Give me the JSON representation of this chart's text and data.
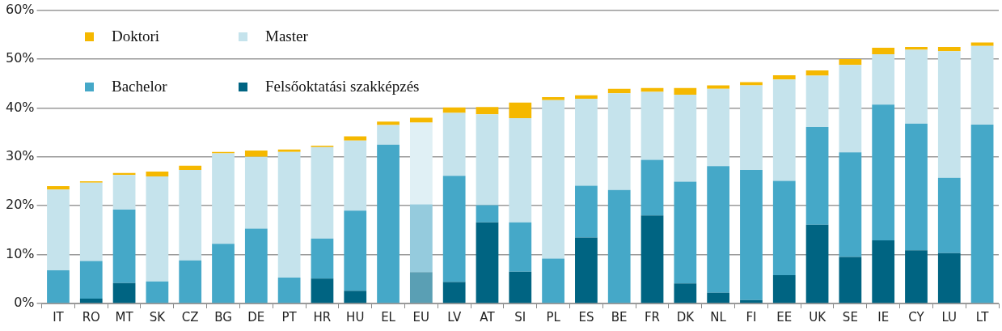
{
  "chart_data": {
    "type": "bar",
    "stacked": true,
    "categories": [
      "IT",
      "RO",
      "MT",
      "SK",
      "CZ",
      "BG",
      "DE",
      "PT",
      "HR",
      "HU",
      "EL",
      "EU",
      "LV",
      "AT",
      "SI",
      "PL",
      "ES",
      "BE",
      "FR",
      "DK",
      "NL",
      "FI",
      "EE",
      "UK",
      "SE",
      "IE",
      "CY",
      "LU",
      "LT"
    ],
    "series": [
      {
        "name": "Felsőoktatási szakképzés",
        "colors": [
          "#006482",
          "#006482",
          "#006482",
          "#006482",
          "#006482",
          "#006482",
          "#006482",
          "#006482",
          "#006482",
          "#006482",
          "#006482",
          "#5a9fb4",
          "#006482",
          "#006482",
          "#006482",
          "#006482",
          "#006482",
          "#006482",
          "#006482",
          "#006482",
          "#006482",
          "#006482",
          "#006482",
          "#006482",
          "#006482",
          "#006482",
          "#006482",
          "#006482",
          "#006482"
        ],
        "values": [
          0,
          1.0,
          4.2,
          0,
          0,
          0,
          0,
          0,
          5.1,
          2.6,
          0,
          6.4,
          4.4,
          16.6,
          6.5,
          0,
          13.5,
          0,
          18.0,
          4.1,
          2.2,
          0.7,
          5.8,
          16.1,
          9.5,
          12.9,
          10.9,
          10.3,
          0
        ]
      },
      {
        "name": "Bachelor",
        "colors": [
          "#45a8c8",
          "#45a8c8",
          "#45a8c8",
          "#45a8c8",
          "#45a8c8",
          "#45a8c8",
          "#45a8c8",
          "#45a8c8",
          "#45a8c8",
          "#45a8c8",
          "#45a8c8",
          "#95cbdd",
          "#45a8c8",
          "#45a8c8",
          "#45a8c8",
          "#45a8c8",
          "#45a8c8",
          "#45a8c8",
          "#45a8c8",
          "#45a8c8",
          "#45a8c8",
          "#45a8c8",
          "#45a8c8",
          "#45a8c8",
          "#45a8c8",
          "#45a8c8",
          "#45a8c8",
          "#45a8c8",
          "#45a8c8"
        ],
        "values": [
          6.8,
          7.7,
          15.0,
          4.5,
          8.8,
          12.2,
          15.3,
          5.3,
          8.2,
          16.4,
          32.5,
          13.9,
          21.7,
          3.5,
          10.1,
          9.2,
          10.6,
          23.2,
          11.4,
          20.8,
          25.9,
          26.6,
          19.3,
          20.0,
          21.4,
          27.8,
          25.9,
          15.4,
          36.6
        ]
      },
      {
        "name": "Master",
        "colors": [
          "#c5e3ec",
          "#c5e3ec",
          "#c5e3ec",
          "#c5e3ec",
          "#c5e3ec",
          "#c5e3ec",
          "#c5e3ec",
          "#c5e3ec",
          "#c5e3ec",
          "#c5e3ec",
          "#c5e3ec",
          "#e0f0f5",
          "#c5e3ec",
          "#c5e3ec",
          "#c5e3ec",
          "#c5e3ec",
          "#c5e3ec",
          "#c5e3ec",
          "#c5e3ec",
          "#c5e3ec",
          "#c5e3ec",
          "#c5e3ec",
          "#c5e3ec",
          "#c5e3ec",
          "#c5e3ec",
          "#c5e3ec",
          "#c5e3ec",
          "#c5e3ec",
          "#c5e3ec"
        ],
        "values": [
          16.5,
          16.0,
          7.1,
          21.5,
          18.5,
          18.5,
          14.7,
          25.7,
          18.7,
          14.3,
          4.0,
          16.7,
          12.9,
          18.6,
          21.3,
          32.4,
          17.8,
          19.8,
          13.9,
          17.8,
          15.8,
          17.3,
          20.7,
          10.5,
          17.9,
          10.3,
          15.1,
          25.9,
          16.1
        ]
      },
      {
        "name": "Doktori",
        "colors": [
          "#f5b800",
          "#f5b800",
          "#f5b800",
          "#f5b800",
          "#f5b800",
          "#f5b800",
          "#f5b800",
          "#f5b800",
          "#f5b800",
          "#f5b800",
          "#f5b800",
          "#f5b800",
          "#f5b800",
          "#f5b800",
          "#f5b800",
          "#f5b800",
          "#f5b800",
          "#f5b800",
          "#f5b800",
          "#f5b800",
          "#f5b800",
          "#f5b800",
          "#f5b800",
          "#f5b800",
          "#f5b800",
          "#f5b800",
          "#f5b800",
          "#f5b800",
          "#f5b800"
        ],
        "values": [
          0.7,
          0.3,
          0.4,
          1.0,
          0.9,
          0.3,
          1.3,
          0.5,
          0.3,
          0.9,
          0.7,
          1.0,
          1.1,
          1.5,
          3.2,
          0.6,
          0.7,
          0.9,
          0.8,
          1.4,
          0.7,
          0.7,
          0.9,
          1.1,
          1.2,
          1.3,
          0.6,
          0.9,
          0.7
        ]
      }
    ],
    "ylim": [
      0,
      60
    ],
    "yticks": [
      {
        "value": 0,
        "label": "0%"
      },
      {
        "value": 10,
        "label": "10%"
      },
      {
        "value": 20,
        "label": "20%"
      },
      {
        "value": 30,
        "label": "30%"
      },
      {
        "value": 40,
        "label": "40%"
      },
      {
        "value": 50,
        "label": "50%"
      },
      {
        "value": 60,
        "label": "60%"
      }
    ],
    "grid": "y",
    "legend": "top left"
  }
}
